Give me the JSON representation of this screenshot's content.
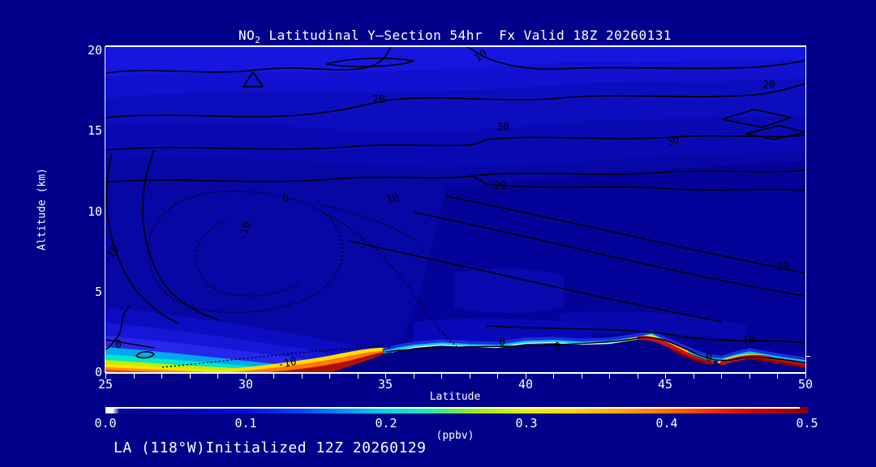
{
  "header": {
    "title_prefix": "NO",
    "title_sub": "2",
    "title_rest": " Latitudinal Y—Section 54hr  Fx Valid 18Z 20260131"
  },
  "footer": {
    "text": "LA (118°W)Initialized 12Z 20260129"
  },
  "axes": {
    "y": {
      "label": "Altitude (km)",
      "ticks": [
        "20",
        "15",
        "10",
        "5",
        "0"
      ]
    },
    "x": {
      "label": "Latitude",
      "min": 25,
      "max": 50,
      "minor_step": 1,
      "ticks": [
        "25",
        "30",
        "35",
        "40",
        "45",
        "50"
      ]
    }
  },
  "colorbar": {
    "label": "(ppbv)",
    "ticks": [
      "0.0",
      "0.1",
      "0.2",
      "0.3",
      "0.4",
      "0.5"
    ]
  },
  "plot": {
    "contour_labels": [
      {
        "t": "20"
      },
      {
        "t": "20"
      },
      {
        "t": "10"
      },
      {
        "t": "30"
      },
      {
        "t": "30"
      },
      {
        "t": "20"
      },
      {
        "t": "20"
      },
      {
        "t": "10"
      },
      {
        "t": "0"
      },
      {
        "t": "0"
      },
      {
        "t": "0"
      },
      {
        "t": "0"
      },
      {
        "t": "-10"
      },
      {
        "t": "-10"
      },
      {
        "t": "-10"
      },
      {
        "t": "0"
      },
      {
        "t": "10"
      }
    ]
  },
  "chart_data": {
    "type": "heatmap",
    "title": "NO2 Latitudinal Y-Section 54hr  Fx Valid 18Z 20260131",
    "subtitle": "LA (118°W)Initialized 12Z 20260129",
    "xlabel": "Latitude",
    "ylabel": "Altitude (km)",
    "xlim": [
      25,
      50
    ],
    "ylim": [
      0,
      20
    ],
    "x_ticks": [
      25,
      30,
      35,
      40,
      45,
      50
    ],
    "x_minor_tick_step": 1,
    "y_ticks": [
      0,
      5,
      10,
      15,
      20
    ],
    "fill_variable": "NO2 mixing ratio",
    "fill_units": "ppbv",
    "colorbar_range": [
      0.0,
      0.5
    ],
    "colorbar_ticks": [
      0.0,
      0.1,
      0.2,
      0.3,
      0.4,
      0.5
    ],
    "colorbar_colors": [
      "#ffffff",
      "#00008b",
      "#0000e0",
      "#0048ff",
      "#00a0ff",
      "#00d8e8",
      "#20e8b0",
      "#90e820",
      "#e8f000",
      "#ffd800",
      "#ffa000",
      "#ff8000",
      "#ff3800",
      "#d00000",
      "#8b0000"
    ],
    "legend_position": "bottom",
    "grid": false,
    "overlay_contours": {
      "style": "black lines, dashed for negative values",
      "labeled_levels": [
        -10,
        0,
        10,
        20,
        30
      ]
    },
    "surface_layer_no2_ppbv": {
      "latitude": [
        25,
        26,
        27,
        28,
        29,
        30,
        31,
        32,
        33,
        34,
        35,
        36,
        37,
        38,
        39,
        40,
        41,
        42,
        43,
        44,
        45,
        46,
        47,
        48,
        49,
        50
      ],
      "max_value": [
        0.4,
        0.4,
        0.38,
        0.38,
        0.4,
        0.42,
        0.45,
        0.5,
        0.5,
        0.5,
        0.25,
        0.2,
        0.18,
        0.15,
        0.18,
        0.2,
        0.18,
        0.15,
        0.2,
        0.35,
        0.5,
        0.45,
        0.25,
        0.45,
        0.5,
        0.5
      ],
      "note": "thin high-NO2 layer hugging the terrain surface; deep red plume 0-1.5 km near lat 32-34.5, shallow red bands near lat 44.5-46 and 47.5-50"
    },
    "background_field_ppbv": {
      "description": "free troposphere/stratosphere mostly < 0.05 ppbv (dark blue); slightly brighter blue band 0.05-0.1 ppbv near 18-20 km",
      "terrain": "elevated terrain (masked, background navy) rises from ~lat 33 to ~1.5-2 km between lat 36-45, dips near lat 46-47, low to lat 50"
    }
  }
}
